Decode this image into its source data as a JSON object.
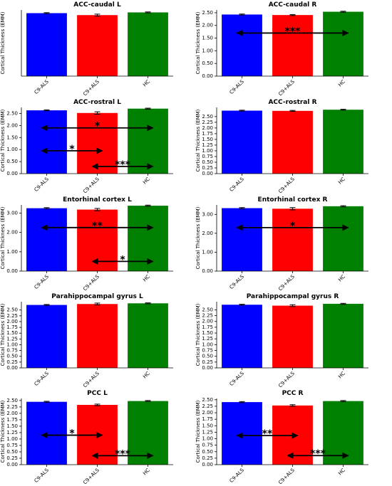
{
  "chart_data": [
    {
      "type": "bar",
      "title": "ACC-caudal L",
      "ylabel": "Cortical Thickness (EMM)",
      "categories": [
        "C9-ALS",
        "C9+ALS",
        "HC"
      ],
      "values": [
        2.57,
        2.49,
        2.6
      ],
      "errors": [
        0.02,
        0.04,
        0.02
      ],
      "colors": [
        "#0000ff",
        "#ff0000",
        "#008000"
      ],
      "ylim": [
        0,
        2.7
      ],
      "annotations": []
    },
    {
      "type": "bar",
      "title": "ACC-caudal R",
      "ylabel": "Cortical Thickness (EMM)",
      "categories": [
        "C9-ALS",
        "C9+ALS",
        "HC"
      ],
      "values": [
        2.43,
        2.41,
        2.54
      ],
      "errors": [
        0.02,
        0.02,
        0.02
      ],
      "colors": [
        "#0000ff",
        "#ff0000",
        "#008000"
      ],
      "ylim": [
        0,
        2.61
      ],
      "yticks": [
        {
          "value": 0,
          "label": "0.00"
        },
        {
          "value": 0.5,
          "label": "0.50"
        },
        {
          "value": 1,
          "label": "1.00"
        },
        {
          "value": 1.5,
          "label": "1.50"
        },
        {
          "value": 2,
          "label": "2.00"
        },
        {
          "value": 2.5,
          "label": "2.50"
        }
      ],
      "annotations": [
        {
          "label": "***",
          "from": 0,
          "to": 2,
          "y": 1.7
        }
      ]
    },
    {
      "type": "bar",
      "title": "ACC-rostral L",
      "ylabel": "Cortical Thickness (EMM)",
      "categories": [
        "C9-ALS",
        "C9+ALS",
        "HC"
      ],
      "values": [
        2.63,
        2.52,
        2.7
      ],
      "errors": [
        0.02,
        0.05,
        0.02
      ],
      "colors": [
        "#0000ff",
        "#ff0000",
        "#008000"
      ],
      "ylim": [
        0,
        2.75
      ],
      "yticks": [
        {
          "value": 0,
          "label": "0.00"
        },
        {
          "value": 0.5,
          "label": "0.50"
        },
        {
          "value": 1,
          "label": "1.00"
        },
        {
          "value": 1.5,
          "label": "1.50"
        },
        {
          "value": 2,
          "label": "2.00"
        },
        {
          "value": 2.5,
          "label": "2.50"
        }
      ],
      "annotations": [
        {
          "label": "*",
          "from": 0,
          "to": 2,
          "y": 1.9
        },
        {
          "label": "*",
          "from": 0,
          "to": 1,
          "y": 0.95
        },
        {
          "label": "***",
          "from": 1,
          "to": 2,
          "y": 0.3
        }
      ]
    },
    {
      "type": "bar",
      "title": "ACC-rostral R",
      "ylabel": "Cortical Thickness (EMM)",
      "categories": [
        "C9-ALS",
        "C9+ALS",
        "HC"
      ],
      "values": [
        2.76,
        2.75,
        2.8
      ],
      "errors": [
        0.02,
        0.02,
        0.02
      ],
      "colors": [
        "#0000ff",
        "#ff0000",
        "#008000"
      ],
      "ylim": [
        0,
        2.9
      ],
      "yticks": [
        {
          "value": 0,
          "label": "0.00"
        },
        {
          "value": 0.25,
          "label": "0.25"
        },
        {
          "value": 0.5,
          "label": "0.50"
        },
        {
          "value": 0.75,
          "label": "0.75"
        },
        {
          "value": 1,
          "label": "1.00"
        },
        {
          "value": 1.25,
          "label": "1.25"
        },
        {
          "value": 1.5,
          "label": "1.50"
        },
        {
          "value": 1.75,
          "label": "1.75"
        },
        {
          "value": 2,
          "label": "2.00"
        },
        {
          "value": 2.25,
          "label": "2.25"
        },
        {
          "value": 2.5,
          "label": "2.50"
        }
      ],
      "annotations": []
    },
    {
      "type": "bar",
      "title": "Entorhinal cortex L",
      "ylabel": "Cortical Thickness (EMM)",
      "categories": [
        "C9-ALS",
        "C9+ALS",
        "HC"
      ],
      "values": [
        3.25,
        3.18,
        3.38
      ],
      "errors": [
        0.03,
        0.06,
        0.03
      ],
      "colors": [
        "#0000ff",
        "#ff0000",
        "#008000"
      ],
      "ylim": [
        0,
        3.42
      ],
      "yticks": [
        {
          "value": 0,
          "label": "0.00"
        },
        {
          "value": 1,
          "label": "1.00"
        },
        {
          "value": 2,
          "label": "2.00"
        },
        {
          "value": 3,
          "label": "3.00"
        }
      ],
      "annotations": [
        {
          "label": "**",
          "from": 0,
          "to": 2,
          "y": 2.25
        },
        {
          "label": "*",
          "from": 1,
          "to": 2,
          "y": 0.5
        }
      ]
    },
    {
      "type": "bar",
      "title": "Entorhinal cortex R",
      "ylabel": "Cortical Thickness (EMM)",
      "categories": [
        "C9-ALS",
        "C9+ALS",
        "HC"
      ],
      "values": [
        3.33,
        3.3,
        3.43
      ],
      "errors": [
        0.03,
        0.06,
        0.03
      ],
      "colors": [
        "#0000ff",
        "#ff0000",
        "#008000"
      ],
      "ylim": [
        0,
        3.5
      ],
      "yticks": [
        {
          "value": 0,
          "label": "0.00"
        },
        {
          "value": 1,
          "label": "1.00"
        },
        {
          "value": 2,
          "label": "2.00"
        },
        {
          "value": 3,
          "label": "3.00"
        }
      ],
      "annotations": [
        {
          "label": "*",
          "from": 0,
          "to": 2,
          "y": 2.3
        }
      ]
    },
    {
      "type": "bar",
      "title": "Parahippocampal gyrus L",
      "ylabel": "Cortical Thickness (EMM)",
      "categories": [
        "C9-ALS",
        "C9+ALS",
        "HC"
      ],
      "values": [
        2.72,
        2.76,
        2.79
      ],
      "errors": [
        0.02,
        0.04,
        0.02
      ],
      "colors": [
        "#0000ff",
        "#ff0000",
        "#008000"
      ],
      "ylim": [
        0,
        2.86
      ],
      "yticks": [
        {
          "value": 0,
          "label": "0.00"
        },
        {
          "value": 0.25,
          "label": "0.25"
        },
        {
          "value": 0.5,
          "label": "0.50"
        },
        {
          "value": 0.75,
          "label": "0.75"
        },
        {
          "value": 1,
          "label": "1.00"
        },
        {
          "value": 1.25,
          "label": "1.25"
        },
        {
          "value": 1.5,
          "label": "1.50"
        },
        {
          "value": 1.75,
          "label": "1.75"
        },
        {
          "value": 2,
          "label": "2.00"
        },
        {
          "value": 2.25,
          "label": "2.25"
        },
        {
          "value": 2.5,
          "label": "2.50"
        }
      ],
      "annotations": []
    },
    {
      "type": "bar",
      "title": "Parahippocampal gyrus R",
      "ylabel": "Cortical Thickness (EMM)",
      "categories": [
        "C9-ALS",
        "C9+ALS",
        "HC"
      ],
      "values": [
        2.72,
        2.68,
        2.76
      ],
      "errors": [
        0.02,
        0.04,
        0.02
      ],
      "colors": [
        "#0000ff",
        "#ff0000",
        "#008000"
      ],
      "ylim": [
        0,
        2.85
      ],
      "yticks": [
        {
          "value": 0,
          "label": "0.00"
        },
        {
          "value": 0.25,
          "label": "0.25"
        },
        {
          "value": 0.5,
          "label": "0.50"
        },
        {
          "value": 0.75,
          "label": "0.75"
        },
        {
          "value": 1,
          "label": "1.00"
        },
        {
          "value": 1.25,
          "label": "1.25"
        },
        {
          "value": 1.5,
          "label": "1.50"
        },
        {
          "value": 1.75,
          "label": "1.75"
        },
        {
          "value": 2,
          "label": "2.00"
        },
        {
          "value": 2.25,
          "label": "2.25"
        },
        {
          "value": 2.5,
          "label": "2.50"
        }
      ],
      "annotations": []
    },
    {
      "type": "bar",
      "title": "PCC L",
      "ylabel": "Cortical Thickness (EMM)",
      "categories": [
        "C9-ALS",
        "C9+ALS",
        "HC"
      ],
      "values": [
        2.45,
        2.33,
        2.48
      ],
      "errors": [
        0.02,
        0.03,
        0.02
      ],
      "colors": [
        "#0000ff",
        "#ff0000",
        "#008000"
      ],
      "ylim": [
        0,
        2.58
      ],
      "yticks": [
        {
          "value": 0,
          "label": "0.00"
        },
        {
          "value": 0.25,
          "label": "0.25"
        },
        {
          "value": 0.5,
          "label": "0.50"
        },
        {
          "value": 0.75,
          "label": "0.75"
        },
        {
          "value": 1,
          "label": "1.00"
        },
        {
          "value": 1.25,
          "label": "1.25"
        },
        {
          "value": 1.5,
          "label": "1.50"
        },
        {
          "value": 1.75,
          "label": "1.75"
        },
        {
          "value": 2,
          "label": "2.00"
        },
        {
          "value": 2.25,
          "label": "2.25"
        },
        {
          "value": 2.5,
          "label": "2.50"
        }
      ],
      "annotations": [
        {
          "label": "*",
          "from": 0,
          "to": 1,
          "y": 1.15
        },
        {
          "label": "***",
          "from": 1,
          "to": 2,
          "y": 0.35
        }
      ]
    },
    {
      "type": "bar",
      "title": "PCC R",
      "ylabel": "Cortical Thickness (EMM)",
      "categories": [
        "C9-ALS",
        "C9+ALS",
        "HC"
      ],
      "values": [
        2.41,
        2.28,
        2.45
      ],
      "errors": [
        0.02,
        0.03,
        0.02
      ],
      "colors": [
        "#0000ff",
        "#ff0000",
        "#008000"
      ],
      "ylim": [
        0,
        2.55
      ],
      "yticks": [
        {
          "value": 0,
          "label": "0.00"
        },
        {
          "value": 0.25,
          "label": "0.25"
        },
        {
          "value": 0.5,
          "label": "0.50"
        },
        {
          "value": 0.75,
          "label": "0.75"
        },
        {
          "value": 1,
          "label": "1.00"
        },
        {
          "value": 1.25,
          "label": "1.25"
        },
        {
          "value": 1.5,
          "label": "1.50"
        },
        {
          "value": 1.75,
          "label": "1.75"
        },
        {
          "value": 2,
          "label": "2.00"
        },
        {
          "value": 2.25,
          "label": "2.25"
        },
        {
          "value": 2.5,
          "label": "2.50"
        }
      ],
      "annotations": [
        {
          "label": "**",
          "from": 0,
          "to": 1,
          "y": 1.12
        },
        {
          "label": "***",
          "from": 1,
          "to": 2,
          "y": 0.35
        }
      ]
    }
  ]
}
